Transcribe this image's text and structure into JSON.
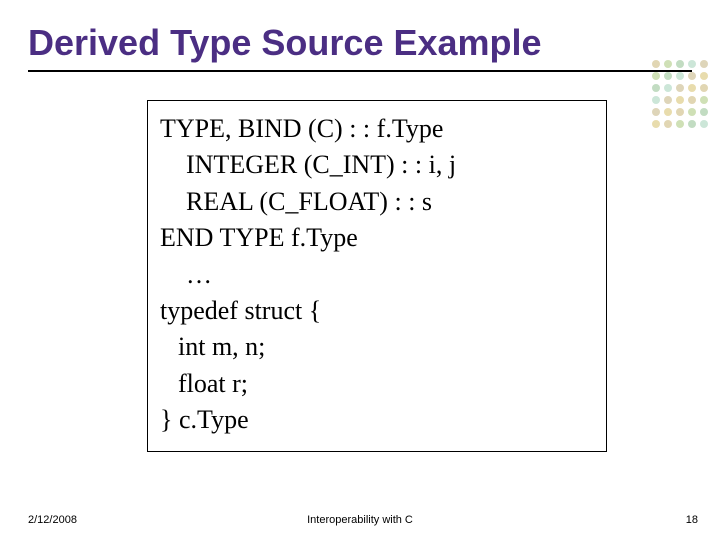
{
  "title": "Derived Type Source Example",
  "code": {
    "lines": [
      {
        "text": "TYPE, BIND (C) : : f.Type",
        "indent": 0
      },
      {
        "text": "INTEGER (C_INT) : : i, j",
        "indent": 1
      },
      {
        "text": "REAL (C_FLOAT) : : s",
        "indent": 1
      },
      {
        "text": "END TYPE f.Type",
        "indent": 0
      },
      {
        "text": "…",
        "indent": 1
      },
      {
        "text": "typedef struct {",
        "indent": 0
      },
      {
        "text": "int m, n;",
        "indent": 2
      },
      {
        "text": "float r;",
        "indent": 2
      },
      {
        "text": "} c.Type",
        "indent": 0
      }
    ]
  },
  "footer": {
    "date": "2/12/2008",
    "center": "Interoperability with C",
    "page": "18"
  },
  "colors": {
    "title": "#4b2e83",
    "dot_palette": [
      "#c9b574",
      "#a7c77a",
      "#8fbf8f",
      "#a3d1b8",
      "#c2b280",
      "#d6c06a"
    ]
  }
}
